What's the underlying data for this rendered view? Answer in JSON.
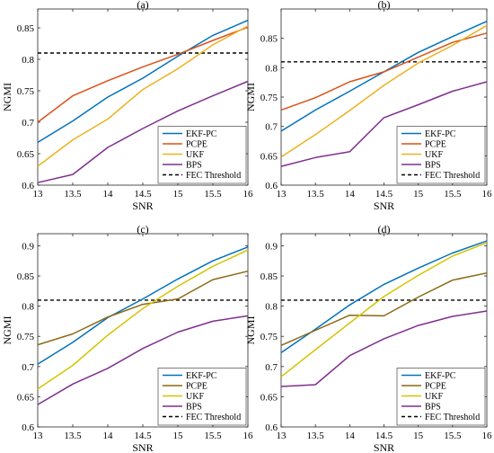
{
  "chart_data": [
    {
      "type": "line",
      "title": "(a)",
      "xlabel": "SNR",
      "ylabel": "NGMI",
      "xlim": [
        13,
        16
      ],
      "ylim": [
        0.6,
        0.88
      ],
      "xticks": [
        "13",
        "13.5",
        "14",
        "14.5",
        "15",
        "15.5",
        "16"
      ],
      "yticks": [
        "0.6",
        "0.65",
        "0.7",
        "0.75",
        "0.8",
        "0.85"
      ],
      "grid": false,
      "legend_position": "bottom-right",
      "x": [
        13,
        13.5,
        14,
        14.5,
        15,
        15.5,
        16
      ],
      "series": [
        {
          "name": "EKF-PC",
          "color": "#0072BD",
          "values": [
            0.668,
            0.702,
            0.74,
            0.77,
            0.805,
            0.838,
            0.862
          ]
        },
        {
          "name": "PCPE",
          "color": "#D95319",
          "values": [
            0.7,
            0.742,
            0.766,
            0.788,
            0.808,
            0.83,
            0.851
          ]
        },
        {
          "name": "UKF",
          "color": "#EDB120",
          "values": [
            0.63,
            0.672,
            0.705,
            0.752,
            0.785,
            0.823,
            0.853
          ]
        },
        {
          "name": "BPS",
          "color": "#7E2F8E",
          "values": [
            0.604,
            0.617,
            0.66,
            0.69,
            0.718,
            0.742,
            0.765
          ]
        }
      ],
      "threshold": {
        "name": "FEC Threshold",
        "value": 0.81
      }
    },
    {
      "type": "line",
      "title": "(b)",
      "xlabel": "SNR",
      "ylabel": "NGMI",
      "xlim": [
        13,
        16
      ],
      "ylim": [
        0.6,
        0.9
      ],
      "xticks": [
        "13",
        "13.5",
        "14",
        "14.5",
        "15",
        "15.5",
        "16"
      ],
      "yticks": [
        "0.6",
        "0.65",
        "0.7",
        "0.75",
        "0.8",
        "0.85"
      ],
      "grid": false,
      "legend_position": "bottom-right",
      "x": [
        13,
        13.5,
        14,
        14.5,
        15,
        15.5,
        16
      ],
      "series": [
        {
          "name": "EKF-PC",
          "color": "#0072BD",
          "values": [
            0.692,
            0.728,
            0.76,
            0.793,
            0.826,
            0.853,
            0.879
          ]
        },
        {
          "name": "PCPE",
          "color": "#D95319",
          "values": [
            0.728,
            0.749,
            0.776,
            0.793,
            0.818,
            0.843,
            0.859
          ]
        },
        {
          "name": "UKF",
          "color": "#EDB120",
          "values": [
            0.648,
            0.686,
            0.727,
            0.77,
            0.808,
            0.838,
            0.872
          ]
        },
        {
          "name": "BPS",
          "color": "#7E2F8E",
          "values": [
            0.632,
            0.647,
            0.657,
            0.715,
            0.737,
            0.76,
            0.776
          ]
        }
      ],
      "threshold": {
        "name": "FEC Threshold",
        "value": 0.81
      }
    },
    {
      "type": "line",
      "title": "(c)",
      "xlabel": "SNR",
      "ylabel": "NGMI",
      "xlim": [
        13,
        16
      ],
      "ylim": [
        0.6,
        0.92
      ],
      "xticks": [
        "13",
        "13.5",
        "14",
        "14.5",
        "15",
        "15.5",
        "16"
      ],
      "yticks": [
        "0.6",
        "0.65",
        "0.7",
        "0.75",
        "0.8",
        "0.85",
        "0.9"
      ],
      "grid": false,
      "legend_position": "bottom-right",
      "x": [
        13,
        13.5,
        14,
        14.5,
        15,
        15.5,
        16
      ],
      "series": [
        {
          "name": "EKF-PC",
          "color": "#0072BD",
          "values": [
            0.704,
            0.74,
            0.781,
            0.812,
            0.845,
            0.875,
            0.898
          ]
        },
        {
          "name": "PCPE",
          "color": "#8B6914",
          "values": [
            0.736,
            0.754,
            0.782,
            0.803,
            0.812,
            0.844,
            0.858
          ]
        },
        {
          "name": "UKF",
          "color": "#D4C400",
          "values": [
            0.663,
            0.702,
            0.752,
            0.796,
            0.833,
            0.866,
            0.893
          ]
        },
        {
          "name": "BPS",
          "color": "#7E2F8E",
          "values": [
            0.637,
            0.671,
            0.697,
            0.73,
            0.757,
            0.775,
            0.784
          ]
        }
      ],
      "threshold": {
        "name": "FEC Threshold",
        "value": 0.81
      }
    },
    {
      "type": "line",
      "title": "(d)",
      "xlabel": "SNR",
      "ylabel": "NGMI",
      "xlim": [
        13,
        16
      ],
      "ylim": [
        0.6,
        0.92
      ],
      "xticks": [
        "13",
        "13.5",
        "14",
        "14.5",
        "15",
        "15.5",
        "16"
      ],
      "yticks": [
        "0.6",
        "0.65",
        "0.7",
        "0.75",
        "0.8",
        "0.85",
        "0.9"
      ],
      "grid": false,
      "legend_position": "bottom-right",
      "x": [
        13,
        13.5,
        14,
        14.5,
        15,
        15.5,
        16
      ],
      "series": [
        {
          "name": "EKF-PC",
          "color": "#0072BD",
          "values": [
            0.723,
            0.762,
            0.802,
            0.836,
            0.863,
            0.888,
            0.908
          ]
        },
        {
          "name": "PCPE",
          "color": "#8B6914",
          "values": [
            0.735,
            0.76,
            0.785,
            0.784,
            0.815,
            0.843,
            0.855
          ]
        },
        {
          "name": "UKF",
          "color": "#D4C400",
          "values": [
            0.683,
            0.728,
            0.772,
            0.816,
            0.851,
            0.883,
            0.905
          ]
        },
        {
          "name": "BPS",
          "color": "#7E2F8E",
          "values": [
            0.667,
            0.67,
            0.718,
            0.746,
            0.768,
            0.783,
            0.792
          ]
        }
      ],
      "threshold": {
        "name": "FEC Threshold",
        "value": 0.81
      }
    }
  ]
}
